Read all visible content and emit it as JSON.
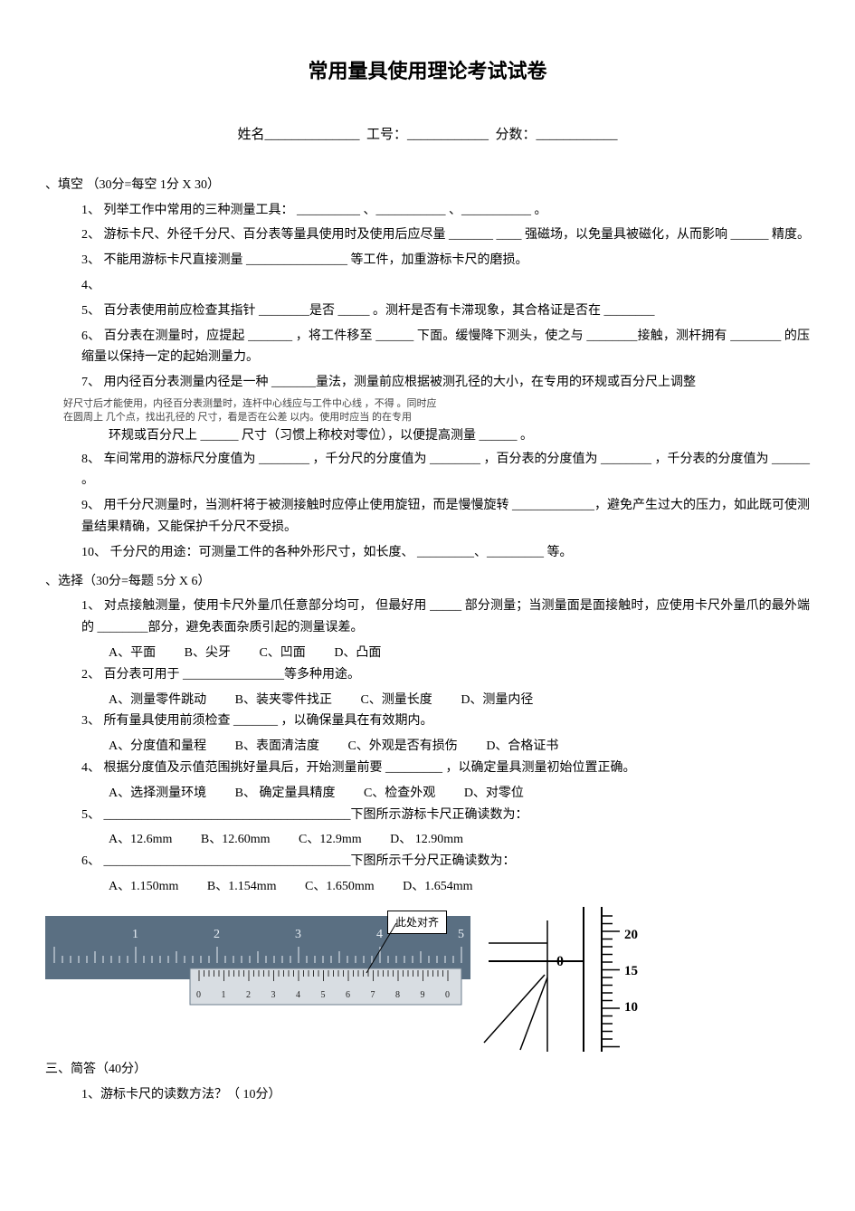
{
  "title": "常用量具使用理论考试试卷",
  "header": {
    "name_label": "姓名",
    "id_label": "工号：",
    "score_label": "分数："
  },
  "s1": {
    "header": "、填空 （30分=每空 1分 X  30）",
    "q1": "1、 列举工作中常用的三种测量工具：  __________   、___________   、___________  。",
    "q2": "2、 游标卡尺、外径千分尺、百分表等量具使用时及使用后应尽量   _______   ____ 强磁场，以免量具被磁化，从而影响 ______ 精度。",
    "q3": "3、 不能用游标卡尺直接测量   ________________  等工件，加重游标卡尺的磨损。",
    "q4": "4、",
    "q5": "5、 百分表使用前应检查其指针   ________是否   _____  。测杆是否有卡滞现象，其合格证是否在   ________",
    "q6": "6、 百分表在测量时，应提起   _______ ，将工件移至   ______ 下面。缓慢降下测头，使之与   ________接触，测杆拥有   ________  的压缩量以保持一定的起始测量力。",
    "q7": "7、 用内径百分表测量内径是一种   _______量法，测量前应根据被测孔径的大小，在专用的环规或百分尺上调整",
    "note7a": "好尺寸后才能使用，内径百分表测量时，连杆中心线应与工件中心线            ，不得   。同时应",
    "note7b": "在圆周上    几个点，找出孔径的    尺寸，看是否在公差    以内。使用时应当   的在专用",
    "q7b": "环规或百分尺上 ______  尺寸（习惯上称校对零位），以便提高测量 ______  。",
    "q8": "8、 车间常用的游标尺分度值为   ________ ，千分尺的分度值为   ________ ，百分表的分度值为   ________ ，千分表的分度值为 ______  。",
    "q9": "9、 用千分尺测量时，当测杆将于被测接触时应停止使用旋钮，而是慢慢旋转           _____________，避免产生过大的压力，如此既可使测量结果精确，又能保护千分尺不受损。",
    "q10": "10、   千分尺的用途：可测量工件的各种外形尺寸，如长度、        _________、_________   等。"
  },
  "s2": {
    "header": "、选择（30分=每题 5分 X  6）",
    "q1": "1、 对点接触测量，使用卡尺外量爪任意部分均可，    但最好用 _____ 部分测量；当测量面是面接触时，应使用卡尺外量爪的最外端的   ________部分，避免表面杂质引起的测量误差。",
    "q1opts": {
      "a": "A、平面",
      "b": "B、尖牙",
      "c": "C、凹面",
      "d": "D、凸面"
    },
    "q2": "2、 百分表可用于 ________________等多种用途。",
    "q2opts": {
      "a": "A、测量零件跳动",
      "b": "B、装夹零件找正",
      "c": "C、测量长度",
      "d": "D、测量内径"
    },
    "q3": "3、 所有量具使用前须检查   _______ ，以确保量具在有效期内。",
    "q3opts": {
      "a": "A、分度值和量程",
      "b": "B、表面清洁度",
      "c": "C、外观是否有损伤",
      "d": "D、合格证书"
    },
    "q4": "4、 根据分度值及示值范围挑好量具后，开始测量前要   _________ ，以确定量具测量初始位置正确。",
    "q4opts": {
      "a": "A、选择测量环境",
      "b": "B、 确定量具精度",
      "c": "C、检查外观",
      "d": "D、对零位"
    },
    "q5": "5、 _______________________________________下图所示游标卡尺正确读数为：",
    "q5opts": {
      "a": "A、12.6mm",
      "b": "B、12.60mm",
      "c": "C、12.9mm",
      "d": "D、 12.90mm"
    },
    "q6": "6、 _______________________________________下图所示千分尺正确读数为：",
    "q6opts": {
      "a": "A、1.150mm",
      "b": "B、1.154mm",
      "c": "C、1.650mm",
      "d": "D、1.654mm"
    }
  },
  "images": {
    "callout": "此处对齐",
    "caliper": {
      "body_color": "#5a6f82",
      "ruler_color": "#d8dde2",
      "text_color": "#e8eef4",
      "main_ticks": [
        "1",
        "2",
        "3",
        "4",
        "5"
      ],
      "vernier_ticks": [
        "0",
        "1",
        "2",
        "3",
        "4",
        "5",
        "6",
        "7",
        "8",
        "9",
        "0"
      ]
    },
    "micrometer": {
      "thimble_0": "0",
      "scale": [
        "20",
        "15",
        "10"
      ]
    }
  },
  "s3": {
    "header": "三、简答（40分）",
    "q1": "1、游标卡尺的读数方法？（     10分）"
  }
}
